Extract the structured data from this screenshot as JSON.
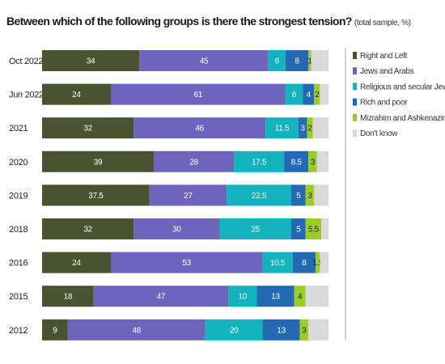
{
  "title": "Between which of the following groups is there the strongest tension?",
  "subtitle": "(total sample, %)",
  "colors": {
    "right_left": "#4a5232",
    "jews_arabs": "#6d65bc",
    "religious_secular": "#12b3bd",
    "rich_poor": "#2369b3",
    "mizrahim_ashkenazim": "#9bcc2b",
    "dont_know": "#d9d9d9",
    "axis_line": "#9aa3c8"
  },
  "chart_data": {
    "type": "bar",
    "orientation": "horizontal",
    "stacked": true,
    "title": "Between which of the following groups is there the strongest tension?",
    "subtitle": "(total sample, %)",
    "unit": "%",
    "legend_position": "right",
    "grid": false,
    "xlim": [
      0,
      100
    ],
    "categories": [
      "Oct 2022",
      "Jun 2022",
      "2021",
      "2020",
      "2019",
      "2018",
      "2016",
      "2015",
      "2012"
    ],
    "series": [
      {
        "name": "Right and Left",
        "color": "#4a5232",
        "values": [
          34,
          24,
          32,
          39,
          37.5,
          32,
          24,
          18,
          9
        ]
      },
      {
        "name": "Jews and Arabs",
        "color": "#6d65bc",
        "values": [
          45,
          61,
          46,
          28,
          27,
          30,
          53,
          47,
          48
        ]
      },
      {
        "name": "Religious and secular Jews",
        "color": "#12b3bd",
        "values": [
          6,
          6,
          11.5,
          17.5,
          22.5,
          25,
          10.5,
          10,
          20
        ]
      },
      {
        "name": "Rich and poor",
        "color": "#2369b3",
        "values": [
          8,
          4,
          3,
          8.5,
          5,
          5,
          8,
          13,
          13
        ]
      },
      {
        "name": "Mizrahim and Ashkenazim",
        "color": "#9bcc2b",
        "values": [
          1,
          2,
          2,
          3,
          3,
          5.5,
          1.5,
          4,
          3
        ]
      },
      {
        "name": "Don't know",
        "color": "#d9d9d9",
        "values": [
          6,
          3,
          5.5,
          4,
          5,
          2.5,
          3,
          8,
          7
        ]
      }
    ],
    "data_labels": [
      [
        "34",
        "45",
        "6",
        "8",
        "1",
        ""
      ],
      [
        "24",
        "61",
        "6",
        "4",
        "2",
        ""
      ],
      [
        "32",
        "46",
        "11.5",
        "3",
        "2",
        ""
      ],
      [
        "39",
        "28",
        "17.5",
        "8.5",
        "3",
        ""
      ],
      [
        "37.5",
        "27",
        "22.5",
        "5",
        "3",
        ""
      ],
      [
        "32",
        "30",
        "25",
        "5",
        "5.5",
        ""
      ],
      [
        "24",
        "53",
        "10.5",
        "8",
        "1.5",
        ""
      ],
      [
        "18",
        "47",
        "10",
        "13",
        "4",
        ""
      ],
      [
        "9",
        "48",
        "20",
        "13",
        "3",
        ""
      ]
    ]
  }
}
